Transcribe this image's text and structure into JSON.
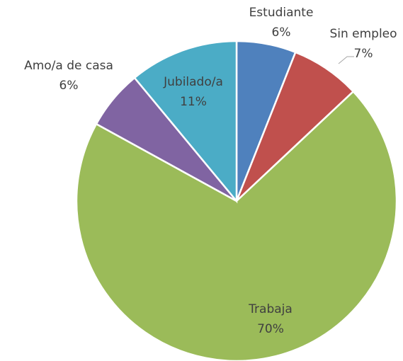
{
  "chart_data": {
    "type": "pie",
    "categories": [
      "Estudiante",
      "Sin empleo",
      "Trabaja",
      "Amo/a de casa",
      "Jubilado/a"
    ],
    "values": [
      6,
      7,
      70,
      6,
      11
    ],
    "value_labels": [
      "6%",
      "7%",
      "70%",
      "6%",
      "11%"
    ],
    "colors": [
      "#4f81bd",
      "#c0504d",
      "#9bbb59",
      "#8064a2",
      "#4bacc6"
    ]
  }
}
